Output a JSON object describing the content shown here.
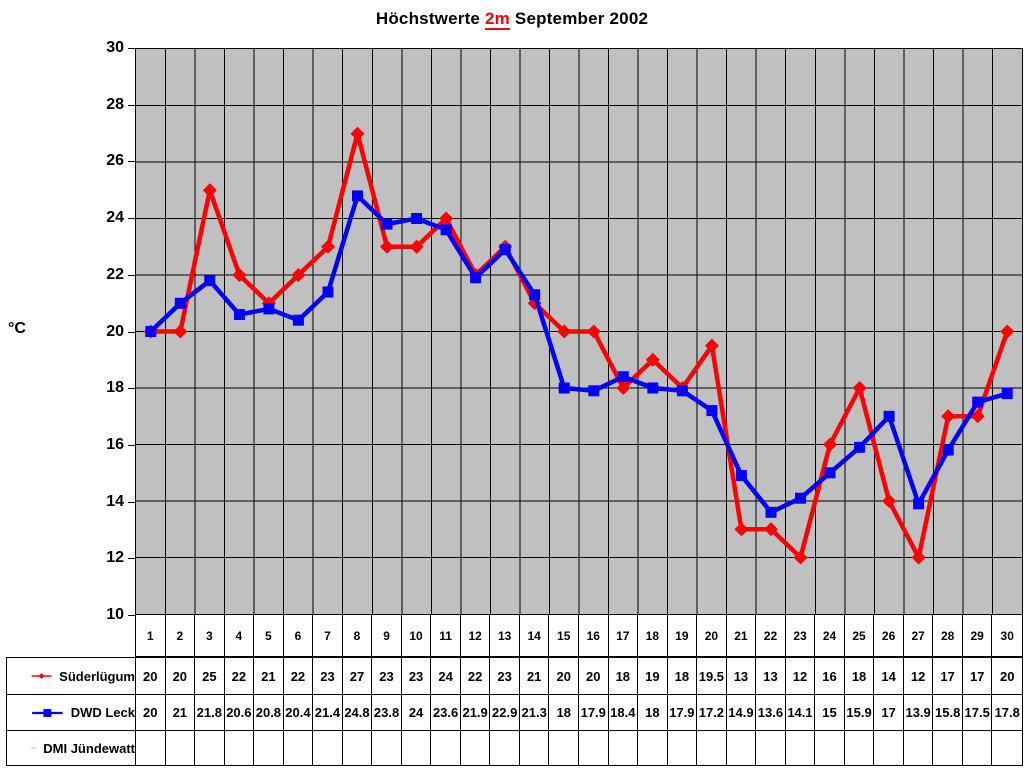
{
  "title": {
    "part1": "Höchstwerte ",
    "highlight": "2m",
    "part2": " September 2002"
  },
  "chart_data": {
    "type": "line",
    "title": "Höchstwerte 2m September 2002",
    "xlabel": "",
    "ylabel": "°C",
    "ylim": [
      10,
      30
    ],
    "y_ticks": [
      30,
      28,
      26,
      24,
      22,
      20,
      18,
      16,
      14,
      12,
      10
    ],
    "grid": "both",
    "plot_background": "#c0c0c0",
    "grid_color": "#000000",
    "legend_position": "table-left-below",
    "categories": [
      1,
      2,
      3,
      4,
      5,
      6,
      7,
      8,
      9,
      10,
      11,
      12,
      13,
      14,
      15,
      16,
      17,
      18,
      19,
      20,
      21,
      22,
      23,
      24,
      25,
      26,
      27,
      28,
      29,
      30
    ],
    "series": [
      {
        "name": "Süderlügum",
        "color": "#ff0000",
        "marker": "diamond",
        "values": [
          20,
          20,
          25,
          22,
          21,
          22,
          23,
          27,
          23,
          23,
          24,
          22,
          23,
          21,
          20,
          20,
          18,
          19,
          18,
          19.5,
          13,
          13,
          12,
          16,
          18,
          14,
          12,
          17,
          17,
          20
        ]
      },
      {
        "name": "DWD Leck",
        "color": "#0000ff",
        "marker": "square",
        "values": [
          20,
          21,
          21.8,
          20.6,
          20.8,
          20.4,
          21.4,
          24.8,
          23.8,
          24,
          23.6,
          21.9,
          22.9,
          21.3,
          18,
          17.9,
          18.4,
          18,
          17.9,
          17.2,
          14.9,
          13.6,
          14.1,
          15,
          15.9,
          17,
          13.9,
          15.8,
          17.5,
          17.8
        ]
      },
      {
        "name": "DMI Jündewatt",
        "color": "#00ff00",
        "marker": "triangle",
        "values": []
      }
    ]
  }
}
